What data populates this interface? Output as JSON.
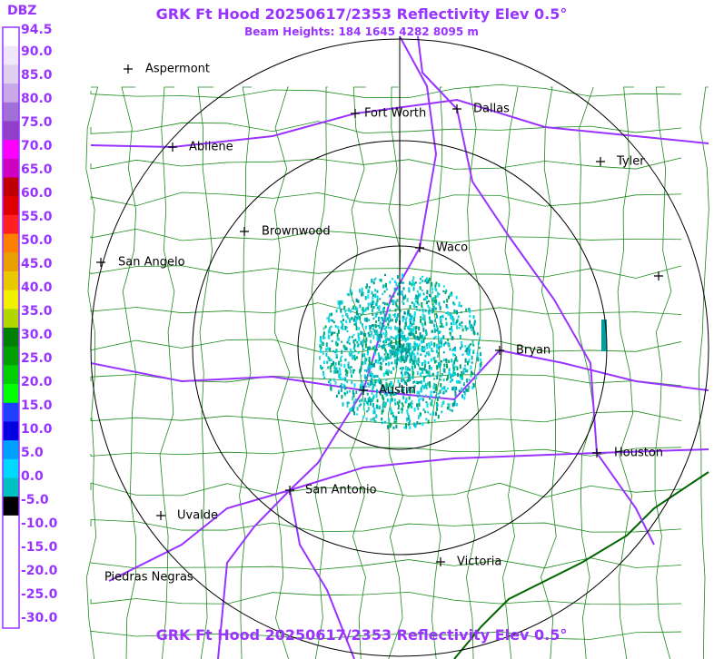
{
  "header": {
    "title": "GRK Ft Hood 20250617/2353 Reflectivity Elev 0.5°",
    "subtitle": "Beam Heights: 184 1645 4282 8095 m"
  },
  "legend": {
    "unit": "DBZ",
    "labels": [
      "94.5",
      "90.0",
      "85.0",
      "80.0",
      "75.0",
      "70.0",
      "65.0",
      "60.0",
      "55.0",
      "50.0",
      "45.0",
      "40.0",
      "35.0",
      "30.0",
      "25.0",
      "20.0",
      "15.0",
      "10.0",
      "5.0",
      "0.0",
      "-5.0",
      "-10.0",
      "-15.0",
      "-20.0",
      "-25.0",
      "-30.0"
    ]
  },
  "cities": [
    "Aspermont",
    "Fort Worth",
    "Dallas",
    "Abilene",
    "Tyler",
    "Brownwood",
    "Waco",
    "San Angelo",
    "Bryan",
    "Austin",
    "Houston",
    "San Antonio",
    "Uvalde",
    "Victoria",
    "Piedras Negras"
  ],
  "footer": {
    "title": "GRK Ft Hood 20250617/2353 Reflectivity Elev 0.5°"
  }
}
